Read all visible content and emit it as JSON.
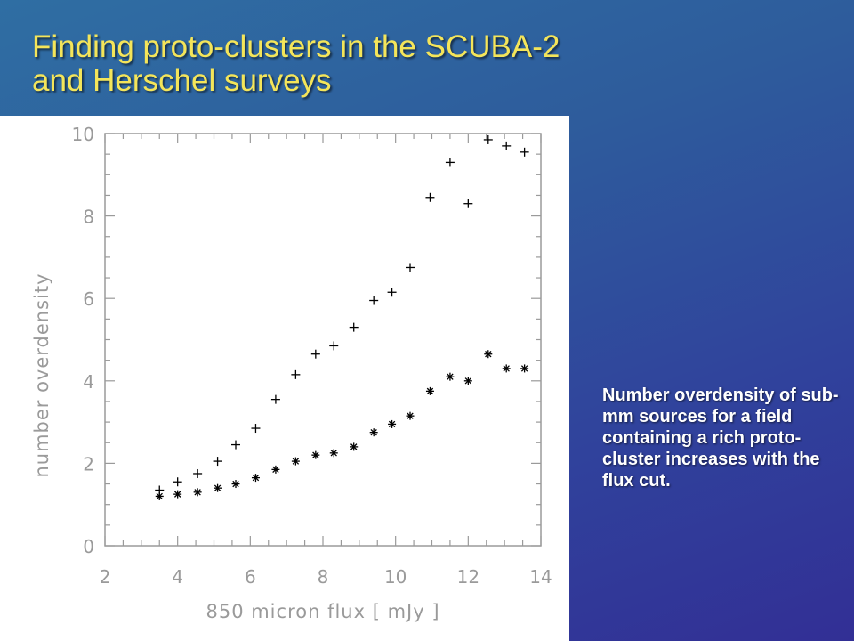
{
  "title": {
    "line1": "Finding proto-clusters in the SCUBA-2",
    "line2": "and Herschel surveys"
  },
  "caption": "Number overdensity of sub-mm sources for a field containing a rich proto-cluster increases with the flux cut.",
  "colors": {
    "title": "#f4e55a",
    "caption": "#ffffff",
    "axis": "#9a9a9a",
    "markers": "#000000"
  },
  "chart_data": {
    "type": "scatter",
    "title": "",
    "xlabel": "850 micron flux   [ mJy ]",
    "ylabel": "number overdensity",
    "xlim": [
      2,
      14
    ],
    "ylim": [
      0,
      10
    ],
    "xticks": [
      2,
      4,
      6,
      8,
      10,
      12,
      14
    ],
    "yticks": [
      0,
      2,
      4,
      6,
      8,
      10
    ],
    "grid": false,
    "series": [
      {
        "marker": "plus",
        "x": [
          3.5,
          4.0,
          4.55,
          5.1,
          5.6,
          6.15,
          6.7,
          7.25,
          7.8,
          8.3,
          8.85,
          9.4,
          9.9,
          10.4,
          10.95,
          11.5,
          12.0,
          12.55,
          13.05,
          13.55
        ],
        "y": [
          1.35,
          1.55,
          1.75,
          2.05,
          2.45,
          2.85,
          3.55,
          4.15,
          4.65,
          4.85,
          5.3,
          5.95,
          6.15,
          6.75,
          8.45,
          9.3,
          8.3,
          9.85,
          9.7,
          9.55
        ]
      },
      {
        "marker": "asterisk",
        "x": [
          3.5,
          4.0,
          4.55,
          5.1,
          5.6,
          6.15,
          6.7,
          7.25,
          7.8,
          8.3,
          8.85,
          9.4,
          9.9,
          10.4,
          10.95,
          11.5,
          12.0,
          12.55,
          13.05,
          13.55
        ],
        "y": [
          1.2,
          1.25,
          1.3,
          1.4,
          1.5,
          1.65,
          1.85,
          2.05,
          2.2,
          2.25,
          2.4,
          2.75,
          2.95,
          3.15,
          3.75,
          4.1,
          4.0,
          4.65,
          4.3,
          4.3
        ]
      }
    ]
  }
}
